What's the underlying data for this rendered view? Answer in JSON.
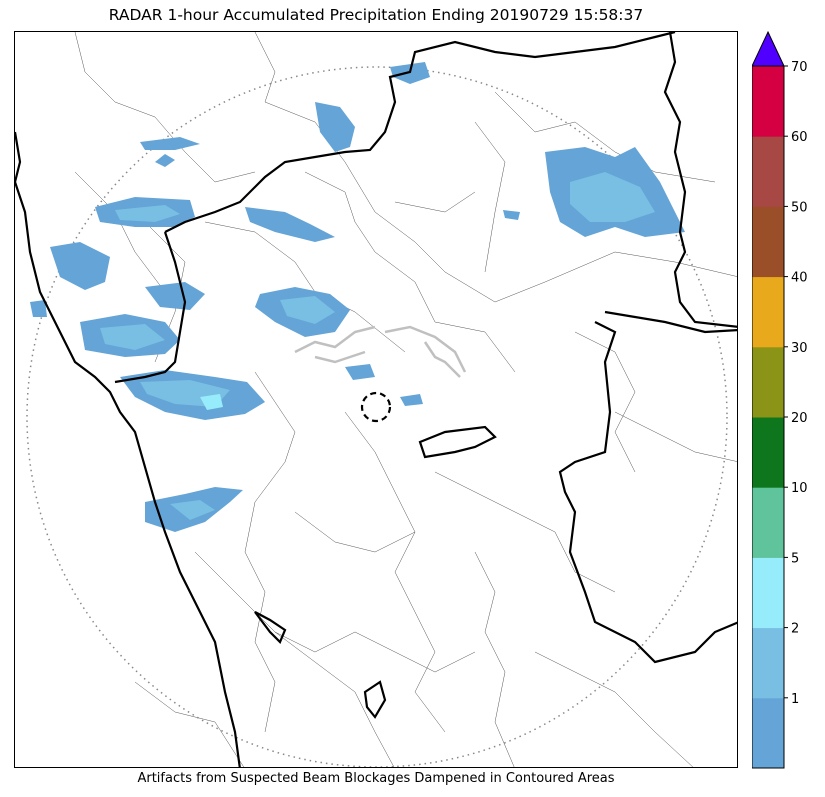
{
  "title": "RADAR 1-hour Accumulated Precipitation Ending 20190729 15:58:37",
  "footer_note": "Artifacts from Suspected Beam Blockages Dampened in Contoured Areas",
  "colorbar": {
    "tick_labels": [
      "1",
      "2",
      "5",
      "10",
      "20",
      "30",
      "40",
      "50",
      "60",
      "70"
    ],
    "bins": [
      {
        "from": 0,
        "to": 1,
        "color": "#64a4d6"
      },
      {
        "from": 1,
        "to": 2,
        "color": "#78bfe3"
      },
      {
        "from": 2,
        "to": 5,
        "color": "#96ecfb"
      },
      {
        "from": 5,
        "to": 10,
        "color": "#5fc49b"
      },
      {
        "from": 10,
        "to": 20,
        "color": "#0e761c"
      },
      {
        "from": 20,
        "to": 30,
        "color": "#8c9418"
      },
      {
        "from": 30,
        "to": 40,
        "color": "#e8aa1c"
      },
      {
        "from": 40,
        "to": 50,
        "color": "#9a4f28"
      },
      {
        "from": 50,
        "to": 60,
        "color": "#a84844"
      },
      {
        "from": 60,
        "to": 70,
        "color": "#d50041"
      }
    ],
    "extend_max_color": "#5000ff"
  },
  "map": {
    "range_ring": "dotted",
    "radar_site_marker": "dashed-circle",
    "coastline_color": "#000000",
    "district_border_color": "#555555",
    "blockage_contour_color": "#c0c0c0"
  }
}
